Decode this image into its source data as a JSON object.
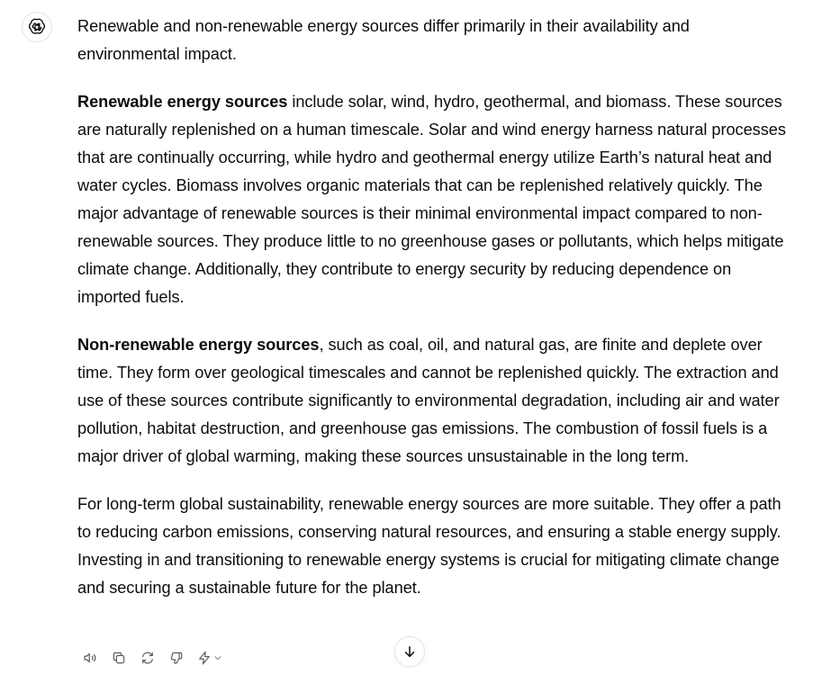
{
  "assistant": {
    "avatar_icon": "openai-logo-icon"
  },
  "message": {
    "intro": "Renewable and non-renewable energy sources differ primarily in their availability and environmental impact.",
    "renewable": {
      "heading": "Renewable energy sources",
      "body": " include solar, wind, hydro, geothermal, and biomass. These sources are naturally replenished on a human timescale. Solar and wind energy harness natural processes that are continually occurring, while hydro and geothermal energy utilize Earth’s natural heat and water cycles. Biomass involves organic materials that can be replenished relatively quickly. The major advantage of renewable sources is their minimal environmental impact compared to non-renewable sources. They produce little to no greenhouse gases or pollutants, which helps mitigate climate change. Additionally, they contribute to energy security by reducing dependence on imported fuels."
    },
    "nonrenewable": {
      "heading": "Non-renewable energy sources",
      "body": ", such as coal, oil, and natural gas, are finite and deplete over time. They form over geological timescales and cannot be replenished quickly. The extraction and use of these sources contribute significantly to environmental degradation, including air and water pollution, habitat destruction, and greenhouse gas emissions. The combustion of fossil fuels is a major driver of global warming, making these sources unsustainable in the long term."
    },
    "conclusion": "For long-term global sustainability, renewable energy sources are more suitable. They offer a path to reducing carbon emissions, conserving natural resources, and ensuring a stable energy supply. Investing in and transitioning to renewable energy systems is crucial for mitigating climate change and securing a sustainable future for the planet."
  },
  "actions": {
    "read_aloud_icon": "speaker-icon",
    "copy_icon": "copy-icon",
    "regenerate_icon": "refresh-icon",
    "thumbs_down_icon": "thumbs-down-icon",
    "model_icon": "lightning-icon",
    "model_chevron_icon": "chevron-down-icon"
  },
  "scroll_button_icon": "arrow-down-icon"
}
